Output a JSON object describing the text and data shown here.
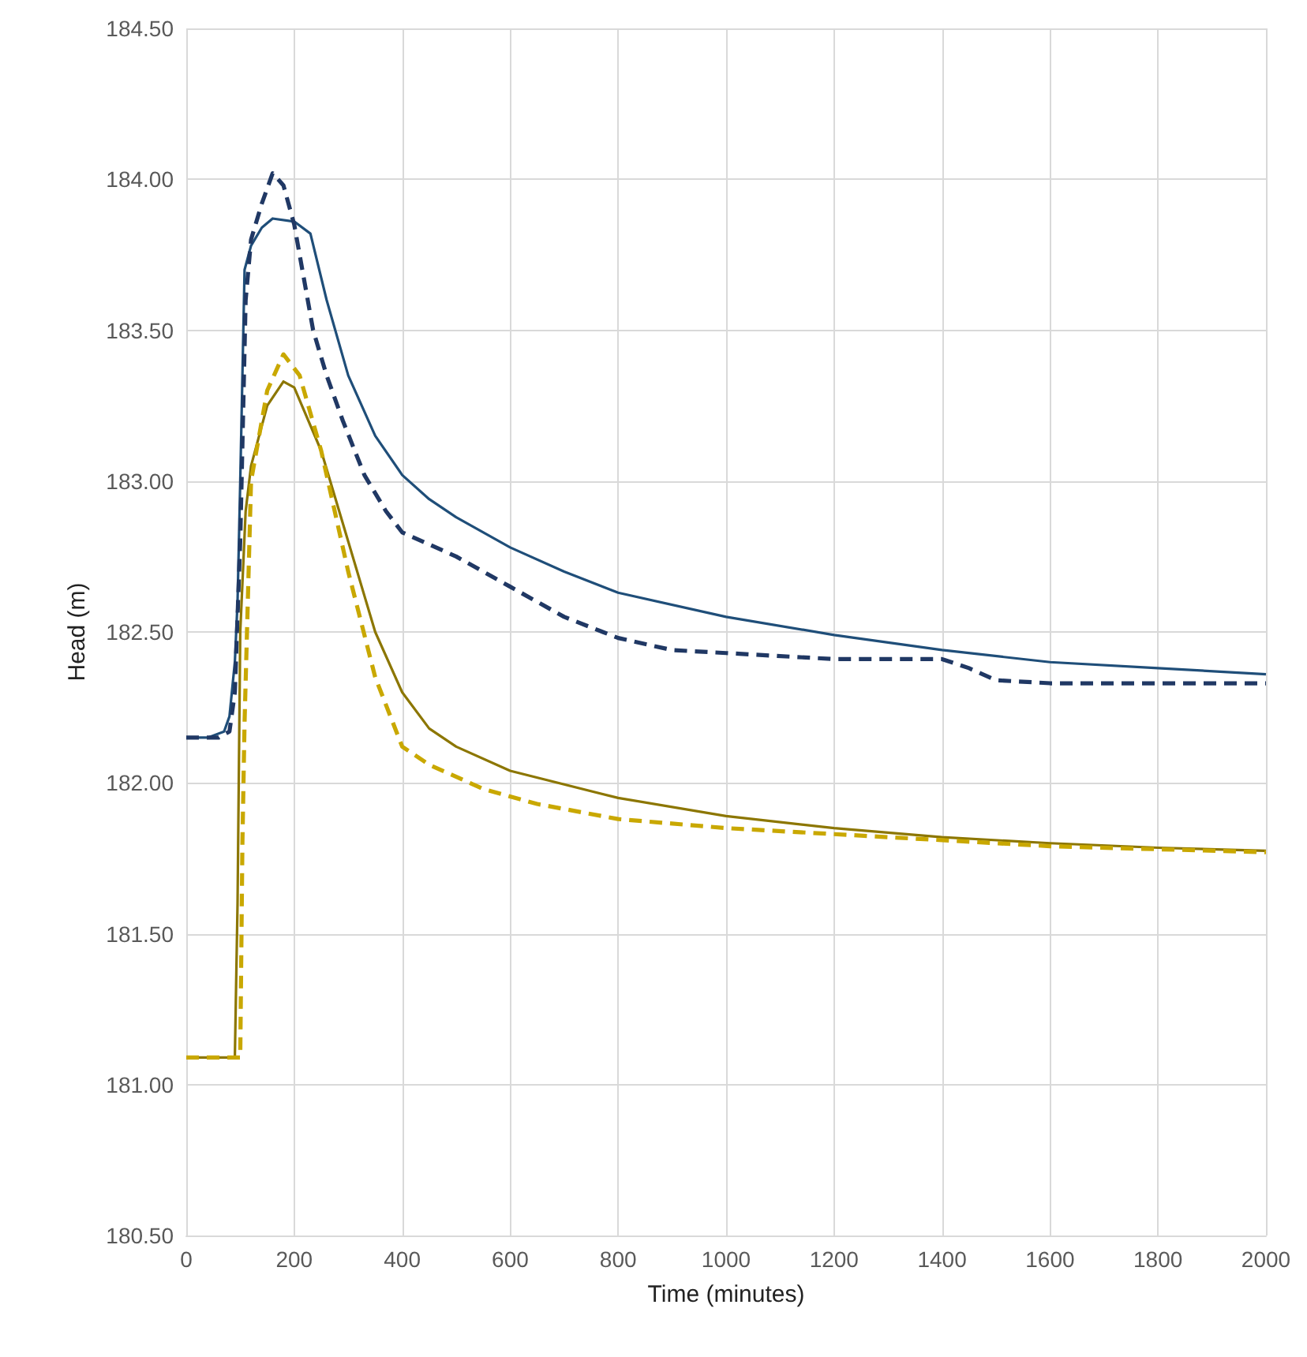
{
  "chart_data": {
    "type": "line",
    "xlabel": "Time (minutes)",
    "ylabel": "Head (m)",
    "xlim": [
      0,
      2000
    ],
    "xticks": [
      0,
      200,
      400,
      600,
      800,
      1000,
      1200,
      1400,
      1600,
      1800,
      2000
    ],
    "ylim": [
      180.5,
      184.5
    ],
    "yticks": [
      {
        "value": 180.5,
        "label": "180.50"
      },
      {
        "value": 181,
        "label": "181.00"
      },
      {
        "value": 181.5,
        "label": "181.50"
      },
      {
        "value": 182,
        "label": "182.00"
      },
      {
        "value": 182.5,
        "label": "182.50"
      },
      {
        "value": 183,
        "label": "183.00"
      },
      {
        "value": 183.5,
        "label": "183.50"
      },
      {
        "value": 184,
        "label": "184.00"
      },
      {
        "value": 184.5,
        "label": "184.50"
      }
    ],
    "grid": true,
    "marker": "none",
    "series": [
      {
        "color": "#1f4e79",
        "line_style": "solid",
        "x": [
          0,
          40,
          70,
          80,
          90,
          95,
          100,
          108,
          120,
          140,
          160,
          200,
          230,
          260,
          300,
          350,
          400,
          450,
          500,
          600,
          700,
          800,
          1000,
          1200,
          1400,
          1600,
          1800,
          2000
        ],
        "values": [
          182.15,
          182.15,
          182.17,
          182.22,
          182.4,
          182.6,
          183.0,
          183.7,
          183.78,
          183.84,
          183.87,
          183.86,
          183.82,
          183.6,
          183.35,
          183.15,
          183.02,
          182.94,
          182.88,
          182.78,
          182.7,
          182.63,
          182.55,
          182.49,
          182.44,
          182.4,
          182.38,
          182.36
        ]
      },
      {
        "color": "#203864",
        "line_style": "dashed",
        "x": [
          0,
          60,
          80,
          90,
          100,
          110,
          120,
          140,
          160,
          180,
          200,
          220,
          235,
          260,
          290,
          330,
          370,
          400,
          500,
          600,
          700,
          800,
          900,
          1000,
          1200,
          1400,
          1450,
          1500,
          1600,
          2000
        ],
        "values": [
          182.15,
          182.15,
          182.17,
          182.3,
          182.8,
          183.6,
          183.8,
          183.92,
          184.02,
          183.98,
          183.85,
          183.65,
          183.5,
          183.35,
          183.2,
          183.02,
          182.9,
          182.83,
          182.75,
          182.65,
          182.55,
          182.48,
          182.44,
          182.43,
          182.41,
          182.41,
          182.38,
          182.34,
          182.33,
          182.33
        ]
      },
      {
        "color": "#8c7600",
        "line_style": "solid",
        "x": [
          0,
          90,
          95,
          100,
          110,
          120,
          150,
          180,
          200,
          250,
          300,
          350,
          400,
          450,
          500,
          600,
          800,
          1000,
          1200,
          1400,
          1600,
          1800,
          2000
        ],
        "values": [
          181.09,
          181.09,
          181.6,
          182.5,
          182.9,
          183.05,
          183.25,
          183.33,
          183.31,
          183.1,
          182.8,
          182.5,
          182.3,
          182.18,
          182.12,
          182.04,
          181.95,
          181.89,
          181.85,
          181.82,
          181.8,
          181.785,
          181.775
        ]
      },
      {
        "color": "#c9a800",
        "line_style": "dashed",
        "x": [
          0,
          100,
          104,
          108,
          120,
          150,
          180,
          210,
          250,
          300,
          350,
          400,
          450,
          550,
          650,
          800,
          1000,
          1200,
          1400,
          1600,
          1800,
          2000
        ],
        "values": [
          181.09,
          181.09,
          181.8,
          182.2,
          183.0,
          183.3,
          183.42,
          183.35,
          183.1,
          182.7,
          182.35,
          182.12,
          182.06,
          181.98,
          181.93,
          181.88,
          181.85,
          181.83,
          181.81,
          181.79,
          181.78,
          181.77
        ]
      }
    ]
  }
}
